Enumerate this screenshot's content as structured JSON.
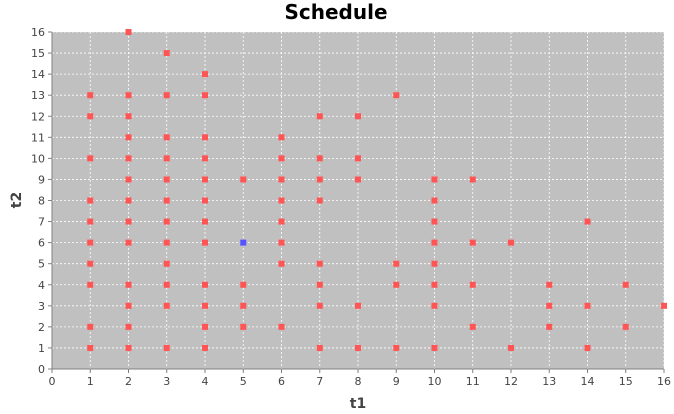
{
  "chart_data": {
    "type": "scatter",
    "title": "Schedule",
    "xlabel": "t1",
    "ylabel": "t2",
    "xlim": [
      0,
      16
    ],
    "ylim": [
      0,
      16
    ],
    "xticks": [
      "0",
      "1",
      "2",
      "3",
      "4",
      "5",
      "6",
      "7",
      "8",
      "9",
      "10",
      "11",
      "12",
      "13",
      "14",
      "15",
      "16"
    ],
    "yticks": [
      "0",
      "1",
      "2",
      "3",
      "4",
      "5",
      "6",
      "7",
      "8",
      "9",
      "10",
      "11",
      "12",
      "13",
      "14",
      "15",
      "16"
    ],
    "grid": true,
    "colors": {
      "plot_background": "#c0c0c0",
      "grid": "#ffffff",
      "series_main": "#ff5555",
      "series_highlight": "#5555ff",
      "axis": "#808080"
    },
    "series": [
      {
        "color": "#ff5555",
        "points": [
          [
            1,
            1
          ],
          [
            1,
            2
          ],
          [
            1,
            4
          ],
          [
            1,
            5
          ],
          [
            1,
            6
          ],
          [
            1,
            7
          ],
          [
            1,
            8
          ],
          [
            1,
            10
          ],
          [
            1,
            12
          ],
          [
            1,
            13
          ],
          [
            2,
            1
          ],
          [
            2,
            2
          ],
          [
            2,
            3
          ],
          [
            2,
            4
          ],
          [
            2,
            6
          ],
          [
            2,
            7
          ],
          [
            2,
            8
          ],
          [
            2,
            9
          ],
          [
            2,
            10
          ],
          [
            2,
            11
          ],
          [
            2,
            12
          ],
          [
            2,
            13
          ],
          [
            2,
            16
          ],
          [
            3,
            1
          ],
          [
            3,
            3
          ],
          [
            3,
            4
          ],
          [
            3,
            5
          ],
          [
            3,
            6
          ],
          [
            3,
            7
          ],
          [
            3,
            8
          ],
          [
            3,
            9
          ],
          [
            3,
            10
          ],
          [
            3,
            11
          ],
          [
            3,
            13
          ],
          [
            3,
            15
          ],
          [
            4,
            1
          ],
          [
            4,
            2
          ],
          [
            4,
            3
          ],
          [
            4,
            4
          ],
          [
            4,
            6
          ],
          [
            4,
            7
          ],
          [
            4,
            8
          ],
          [
            4,
            9
          ],
          [
            4,
            10
          ],
          [
            4,
            11
          ],
          [
            4,
            13
          ],
          [
            4,
            14
          ],
          [
            5,
            2
          ],
          [
            5,
            3
          ],
          [
            5,
            4
          ],
          [
            5,
            9
          ],
          [
            6,
            2
          ],
          [
            6,
            5
          ],
          [
            6,
            6
          ],
          [
            6,
            7
          ],
          [
            6,
            8
          ],
          [
            6,
            9
          ],
          [
            6,
            10
          ],
          [
            6,
            11
          ],
          [
            7,
            1
          ],
          [
            7,
            3
          ],
          [
            7,
            4
          ],
          [
            7,
            5
          ],
          [
            7,
            8
          ],
          [
            7,
            9
          ],
          [
            7,
            10
          ],
          [
            7,
            12
          ],
          [
            8,
            1
          ],
          [
            8,
            3
          ],
          [
            8,
            9
          ],
          [
            8,
            10
          ],
          [
            8,
            12
          ],
          [
            9,
            1
          ],
          [
            9,
            4
          ],
          [
            9,
            5
          ],
          [
            9,
            13
          ],
          [
            10,
            1
          ],
          [
            10,
            3
          ],
          [
            10,
            4
          ],
          [
            10,
            5
          ],
          [
            10,
            6
          ],
          [
            10,
            7
          ],
          [
            10,
            8
          ],
          [
            10,
            9
          ],
          [
            11,
            2
          ],
          [
            11,
            4
          ],
          [
            11,
            6
          ],
          [
            11,
            9
          ],
          [
            12,
            1
          ],
          [
            12,
            6
          ],
          [
            13,
            2
          ],
          [
            13,
            3
          ],
          [
            13,
            4
          ],
          [
            14,
            1
          ],
          [
            14,
            3
          ],
          [
            14,
            7
          ],
          [
            15,
            2
          ],
          [
            15,
            4
          ],
          [
            16,
            3
          ]
        ]
      },
      {
        "color": "#5555ff",
        "points": [
          [
            5,
            6
          ]
        ]
      }
    ]
  }
}
